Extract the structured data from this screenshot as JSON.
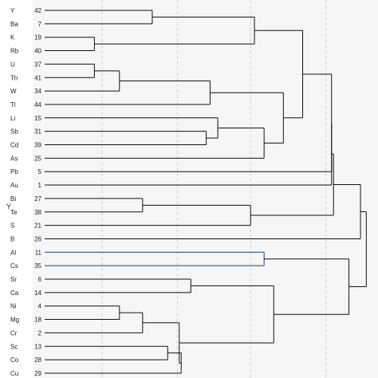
{
  "chart_data": {
    "type": "dendrogram",
    "ylabel": "Y",
    "leaves": [
      {
        "element": "Y",
        "case": "42"
      },
      {
        "element": "Ba",
        "case": "7"
      },
      {
        "element": "K",
        "case": "19"
      },
      {
        "element": "Rb",
        "case": "40"
      },
      {
        "element": "U",
        "case": "37"
      },
      {
        "element": "Th",
        "case": "41"
      },
      {
        "element": "W",
        "case": "34"
      },
      {
        "element": "Tl",
        "case": "44"
      },
      {
        "element": "Li",
        "case": "15"
      },
      {
        "element": "Sb",
        "case": "31"
      },
      {
        "element": "Cd",
        "case": "39"
      },
      {
        "element": "As",
        "case": "25"
      },
      {
        "element": "Pb",
        "case": "5"
      },
      {
        "element": "Au",
        "case": "1"
      },
      {
        "element": "Bi",
        "case": "27"
      },
      {
        "element": "Te",
        "case": "38"
      },
      {
        "element": "S",
        "case": "21"
      },
      {
        "element": "B",
        "case": "26"
      },
      {
        "element": "Al",
        "case": "11"
      },
      {
        "element": "Cs",
        "case": "35"
      },
      {
        "element": "Sr",
        "case": "6"
      },
      {
        "element": "Ca",
        "case": "14"
      },
      {
        "element": "Ni",
        "case": "4"
      },
      {
        "element": "Mg",
        "case": "18"
      },
      {
        "element": "Cr",
        "case": "2"
      },
      {
        "element": "Sc",
        "case": "13"
      },
      {
        "element": "Co",
        "case": "28"
      },
      {
        "element": "Cu",
        "case": "29"
      }
    ],
    "merges": [
      {
        "a": "Y",
        "b": "Ba",
        "distance": 6.2
      },
      {
        "a": "K",
        "b": "Rb",
        "distance": 3.2
      },
      {
        "a": "U",
        "b": "Th",
        "distance": 3.2
      },
      {
        "a": "U+Th",
        "b": "W",
        "distance": 4.5
      },
      {
        "a": "UThW",
        "b": "Tl",
        "distance": 9.2
      },
      {
        "a": "Y+Ba",
        "b": "K+Rb",
        "distance": 11.5
      },
      {
        "a": "Sb",
        "b": "Cd",
        "distance": 9.0
      },
      {
        "a": "Li",
        "b": "SbCd",
        "distance": 9.6
      },
      {
        "a": "LiSbCd",
        "b": "As",
        "distance": 12.0
      },
      {
        "a": "UThWTl",
        "b": "LiSbCdAs",
        "distance": 13.0
      },
      {
        "a": "Bi",
        "b": "Te",
        "distance": 5.7
      },
      {
        "a": "BiTe",
        "b": "S",
        "distance": 11.3
      },
      {
        "a": "YBaKRb",
        "b": "UThWTlLiSbCdAs",
        "distance": 14.0
      },
      {
        "a": "Al",
        "b": "Cs",
        "distance": 12.0
      },
      {
        "a": "Sr",
        "b": "Ca",
        "distance": 8.2
      },
      {
        "a": "Ni",
        "b": "Mg",
        "distance": 4.5
      },
      {
        "a": "NiMg",
        "b": "Cr",
        "distance": 5.7
      },
      {
        "a": "Sc",
        "b": "Co",
        "distance": 7.0
      },
      {
        "a": "ScCo",
        "b": "Cu",
        "distance": 7.7
      },
      {
        "a": "NiMgCr",
        "b": "ScCoCu",
        "distance": 7.6
      },
      {
        "a": "SrCa",
        "b": "NiMgCrScCoCu",
        "distance": 12.5
      },
      {
        "a": "big-upper",
        "b": "Pb",
        "distance": 15.5
      },
      {
        "a": "upper+Pb",
        "b": "Au",
        "distance": 15.5
      },
      {
        "a": "upper+Au",
        "b": "BiTeS",
        "distance": 15.6
      },
      {
        "a": "upper+BiTeS",
        "b": "B",
        "distance": 17.0
      },
      {
        "a": "AlCs",
        "b": "lower",
        "distance": 16.4
      },
      {
        "a": "upper",
        "b": "lower",
        "distance": 17.3
      }
    ],
    "grid": true
  }
}
